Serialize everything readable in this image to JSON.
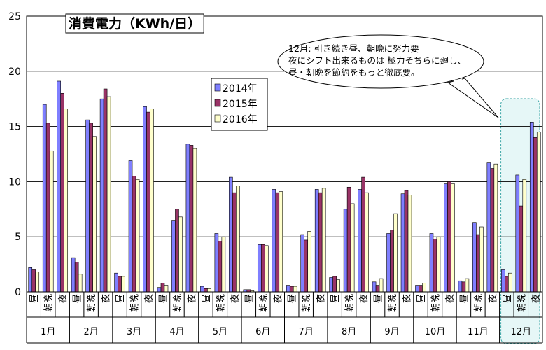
{
  "chart_data": {
    "type": "bar",
    "title": "消費電力（KWh/日）",
    "ylim": [
      0,
      25
    ],
    "yticks": [
      "0",
      "5",
      "10",
      "15",
      "20",
      "25"
    ],
    "months": [
      "1月",
      "2月",
      "3月",
      "4月",
      "5月",
      "6月",
      "7月",
      "8月",
      "9月",
      "10月",
      "11月",
      "12月"
    ],
    "periods": [
      "昼",
      "朝晩",
      "夜"
    ],
    "legend_position": "upper-middle",
    "highlight_month": "12月",
    "series": [
      {
        "name": "2014年",
        "color": "#7f7fff",
        "values": [
          [
            2.2,
            17.0,
            19.1
          ],
          [
            3.1,
            15.6,
            17.5
          ],
          [
            1.7,
            11.9,
            16.8
          ],
          [
            0.4,
            6.5,
            13.4
          ],
          [
            0.5,
            5.3,
            10.4
          ],
          [
            0.2,
            4.3,
            9.3
          ],
          [
            0.6,
            5.2,
            9.3
          ],
          [
            1.3,
            7.5,
            9.3
          ],
          [
            0.9,
            5.3,
            8.9
          ],
          [
            0.6,
            5.3,
            9.8
          ],
          [
            1.0,
            6.3,
            11.7
          ],
          [
            2.0,
            10.6,
            15.4
          ]
        ]
      },
      {
        "name": "2015年",
        "color": "#993366",
        "values": [
          [
            2.0,
            15.3,
            18.0
          ],
          [
            2.7,
            15.3,
            18.4
          ],
          [
            1.4,
            10.5,
            16.3
          ],
          [
            0.8,
            7.5,
            13.3
          ],
          [
            0.3,
            4.6,
            9.0
          ],
          [
            0.2,
            4.3,
            9.0
          ],
          [
            0.5,
            4.7,
            9.0
          ],
          [
            1.4,
            9.5,
            10.4
          ],
          [
            0.6,
            5.6,
            9.2
          ],
          [
            0.6,
            4.8,
            10.0
          ],
          [
            0.9,
            5.2,
            11.2
          ],
          [
            1.4,
            7.8,
            14.0
          ]
        ]
      },
      {
        "name": "2016年",
        "color": "#ffffcc",
        "values": [
          [
            1.8,
            12.8,
            16.6
          ],
          [
            1.6,
            14.1,
            17.7
          ],
          [
            1.4,
            10.2,
            16.6
          ],
          [
            0.6,
            6.8,
            13.0
          ],
          [
            0.3,
            5.0,
            9.6
          ],
          [
            0.1,
            4.2,
            9.1
          ],
          [
            0.5,
            5.5,
            9.4
          ],
          [
            1.1,
            8.0,
            9.0
          ],
          [
            1.2,
            7.1,
            8.8
          ],
          [
            0.8,
            5.0,
            9.8
          ],
          [
            1.2,
            5.9,
            11.6
          ],
          [
            1.7,
            10.2,
            14.5
          ]
        ]
      }
    ],
    "annotation": {
      "lines": [
        "12月:  引き続き昼、朝晩に努力要",
        "   夜にシフト出来るものは 極力そちらに廻し、",
        "昼・朝晩を節約をもっと徹底要。"
      ]
    }
  }
}
